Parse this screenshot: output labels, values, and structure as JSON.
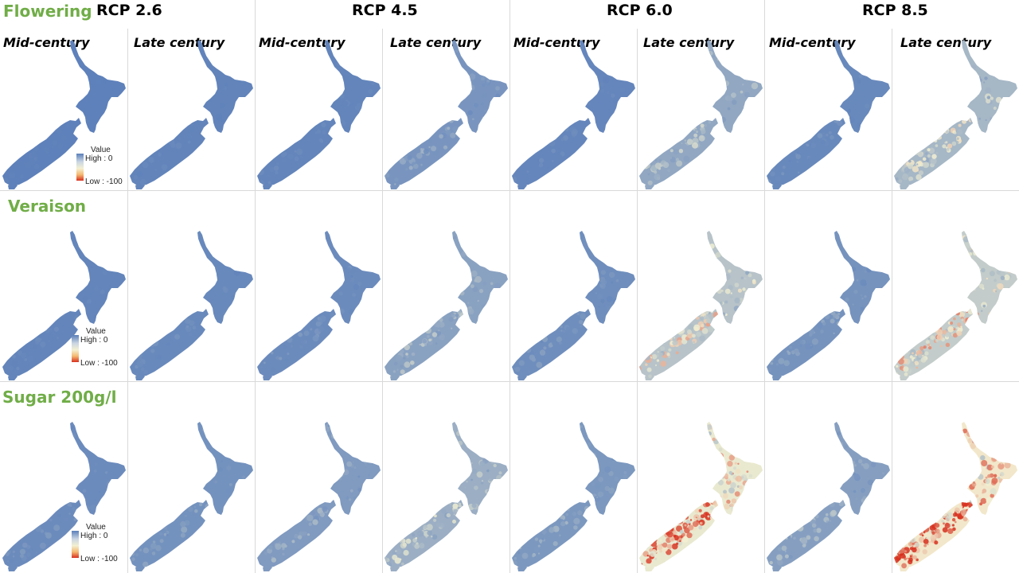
{
  "scenarios": [
    "RCP 2.6",
    "RCP 4.5",
    "RCP 6.0",
    "RCP 8.5"
  ],
  "periods": [
    "Mid-century",
    "Late century"
  ],
  "rows": [
    {
      "title": "Flowering",
      "intensity": [
        0.02,
        0.04,
        0.05,
        0.18,
        0.06,
        0.32,
        0.08,
        0.45
      ]
    },
    {
      "title": "Veraison",
      "intensity": [
        0.05,
        0.08,
        0.1,
        0.28,
        0.12,
        0.55,
        0.16,
        0.62
      ]
    },
    {
      "title": "Sugar 200g/l",
      "intensity": [
        0.1,
        0.15,
        0.22,
        0.38,
        0.2,
        0.85,
        0.26,
        0.95
      ]
    }
  ],
  "legend": {
    "title": "Value",
    "high": "High : 0",
    "low": "Low : -100"
  },
  "colors": {
    "high": "#5b7fba",
    "mid": "#f3f0d2",
    "low": "#d7301f",
    "title": "#70ad47"
  }
}
